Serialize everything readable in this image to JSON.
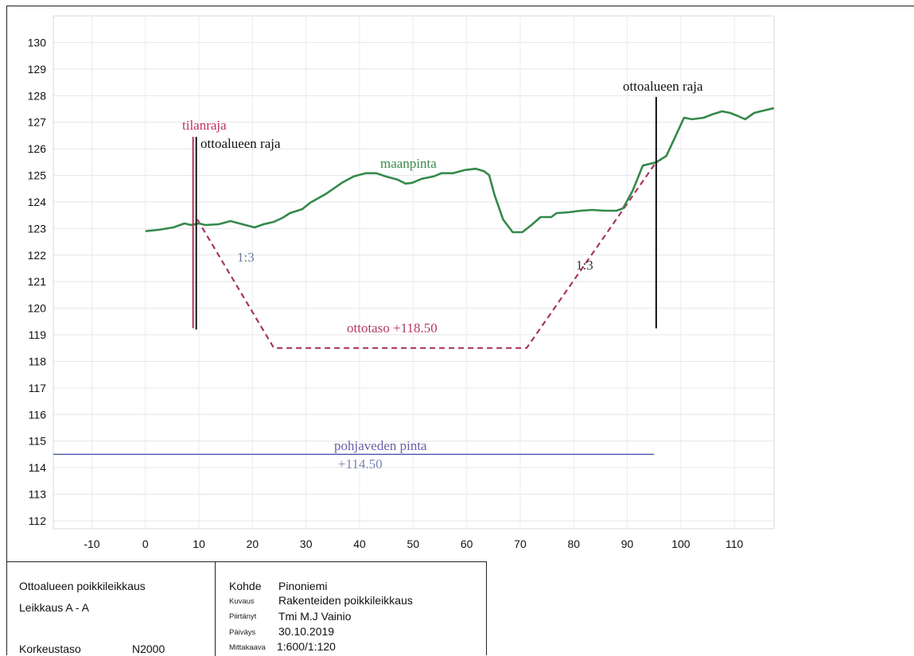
{
  "chart_data": {
    "type": "line",
    "xlim": [
      -17.2,
      117.4
    ],
    "ylim": [
      111.7,
      131
    ],
    "xticks": [
      -10,
      0,
      10,
      20,
      30,
      40,
      50,
      60,
      70,
      80,
      90,
      100,
      110
    ],
    "yticks": [
      112,
      113,
      114,
      115,
      116,
      117,
      118,
      119,
      120,
      121,
      122,
      123,
      124,
      125,
      126,
      127,
      128,
      129,
      130
    ],
    "grid": true,
    "series": [
      {
        "name": "maanpinta",
        "color": "#34894a",
        "width": 2.6,
        "dashed": false,
        "points": [
          [
            0,
            122.9
          ],
          [
            2.5,
            122.95
          ],
          [
            5.2,
            123.04
          ],
          [
            7.3,
            123.19
          ],
          [
            8.5,
            123.13
          ],
          [
            10,
            123.19
          ],
          [
            11.2,
            123.13
          ],
          [
            13.7,
            123.16
          ],
          [
            15.9,
            123.28
          ],
          [
            18.1,
            123.16
          ],
          [
            20.4,
            123.04
          ],
          [
            22.1,
            123.16
          ],
          [
            24,
            123.25
          ],
          [
            25.6,
            123.4
          ],
          [
            27,
            123.58
          ],
          [
            29.3,
            123.73
          ],
          [
            30.8,
            123.97
          ],
          [
            33.7,
            124.3
          ],
          [
            36.7,
            124.72
          ],
          [
            38.9,
            124.96
          ],
          [
            41.2,
            125.08
          ],
          [
            43.1,
            125.08
          ],
          [
            44.9,
            124.96
          ],
          [
            47.1,
            124.84
          ],
          [
            48.6,
            124.69
          ],
          [
            49.8,
            124.72
          ],
          [
            51.6,
            124.87
          ],
          [
            53.8,
            124.96
          ],
          [
            55.3,
            125.08
          ],
          [
            57.5,
            125.08
          ],
          [
            59.7,
            125.2
          ],
          [
            61.7,
            125.25
          ],
          [
            63.2,
            125.16
          ],
          [
            64.2,
            125.01
          ],
          [
            65.2,
            124.27
          ],
          [
            66.8,
            123.34
          ],
          [
            68.6,
            122.86
          ],
          [
            70.4,
            122.86
          ],
          [
            72.1,
            123.13
          ],
          [
            73.8,
            123.43
          ],
          [
            75.8,
            123.43
          ],
          [
            76.8,
            123.58
          ],
          [
            79,
            123.61
          ],
          [
            81.3,
            123.67
          ],
          [
            83.5,
            123.7
          ],
          [
            85.7,
            123.67
          ],
          [
            88,
            123.67
          ],
          [
            89.2,
            123.76
          ],
          [
            91,
            124.42
          ],
          [
            92.9,
            125.37
          ],
          [
            95.4,
            125.49
          ],
          [
            97.3,
            125.73
          ],
          [
            99.1,
            126.51
          ],
          [
            100.6,
            127.17
          ],
          [
            102.1,
            127.11
          ],
          [
            104.3,
            127.17
          ],
          [
            105.8,
            127.29
          ],
          [
            107.7,
            127.41
          ],
          [
            109.2,
            127.35
          ],
          [
            110.7,
            127.23
          ],
          [
            112,
            127.11
          ],
          [
            113.7,
            127.35
          ],
          [
            115.5,
            127.44
          ],
          [
            117.4,
            127.53
          ]
        ]
      },
      {
        "name": "ottotaso +118.50",
        "color": "#a8345f",
        "width": 2.2,
        "dashed": true,
        "points": [
          [
            9.7,
            123.34
          ],
          [
            24,
            118.5
          ],
          [
            71.2,
            118.5
          ],
          [
            95.4,
            125.5
          ]
        ]
      },
      {
        "name": "tilanraja",
        "color": "#b4304f",
        "width": 2,
        "dashed": false,
        "points": [
          [
            8.9,
            126.45
          ],
          [
            8.9,
            119.25
          ]
        ]
      },
      {
        "name": "ottoalueen raja",
        "color": "#111111",
        "width": 2,
        "dashed": false,
        "points": [
          [
            9.5,
            126.45
          ],
          [
            9.5,
            119.2
          ]
        ]
      },
      {
        "name": "ottoalueen raja",
        "color": "#111111",
        "width": 2,
        "dashed": false,
        "points": [
          [
            95.4,
            127.95
          ],
          [
            95.4,
            119.24
          ]
        ]
      },
      {
        "name": "pohjaveden pinta",
        "value_label": "+114.50",
        "color": "#3d4fa6",
        "width": 1.3,
        "dashed": false,
        "points": [
          [
            -17.2,
            114.5
          ],
          [
            95,
            114.5
          ]
        ]
      }
    ],
    "annotations": [
      {
        "text": "1:3"
      },
      {
        "text": "1:3"
      }
    ]
  },
  "title_block": {
    "left": {
      "title": "Ottoalueen poikkileikkaus",
      "section": "Leikkaus A - A",
      "height_system_label": "Korkeustaso",
      "height_system_value": "N2000"
    },
    "right": {
      "rows": [
        {
          "label": "Kohde",
          "value": "Pinoniemi"
        },
        {
          "label": "Kuvaus",
          "value": "Rakenteiden poikkileikkaus"
        },
        {
          "label": "Piirtänyt",
          "value": "Tmi M.J Vainio"
        },
        {
          "label": "Päiväys",
          "value": "30.10.2019"
        },
        {
          "label": "Mittakaava",
          "value": "1:600/1:120"
        }
      ]
    }
  }
}
